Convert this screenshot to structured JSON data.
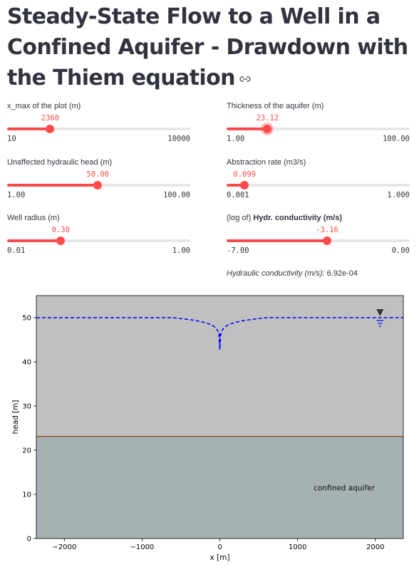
{
  "title": "Steady-State Flow to a Well in a Confined Aquifer - Drawdown with the Thiem equation",
  "sliders": {
    "xmax": {
      "label": "x_max of the plot (m)",
      "value": "2360",
      "min": "10",
      "max": "10000",
      "fraction": 0.235
    },
    "thick": {
      "label": "Thickness of the aquifer (m)",
      "value": "23.12",
      "min": "1.00",
      "max": "100.00",
      "fraction": 0.223
    },
    "head": {
      "label": "Unaffected hydraulic head (m)",
      "value": "50.00",
      "min": "1.00",
      "max": "100.00",
      "fraction": 0.495
    },
    "q": {
      "label": "Abstraction rate (m3/s)",
      "value": "0.099",
      "min": "0.001",
      "max": "1.000",
      "fraction": 0.098
    },
    "rw": {
      "label": "Well radius (m)",
      "value": "0.30",
      "min": "0.01",
      "max": "1.00",
      "fraction": 0.293
    },
    "logk": {
      "label_prefix": "(log of)",
      "label_bold": "Hydr. conductivity (m/s)",
      "value": "-3.16",
      "min": "-7.00",
      "max": "0.00",
      "fraction": 0.549
    }
  },
  "k_info": {
    "label": "Hydraulic conductivity (m/s):",
    "value": "6.92e-04"
  },
  "chart_data": {
    "type": "line",
    "xlabel": "x [m]",
    "ylabel": "head [m]",
    "xlim": [
      -2360,
      2360
    ],
    "ylim": [
      0,
      55
    ],
    "xticks": [
      -2000,
      -1000,
      0,
      1000,
      2000
    ],
    "xtick_labels": [
      "−2000",
      "−1000",
      "0",
      "1000",
      "2000"
    ],
    "yticks": [
      0,
      10,
      20,
      30,
      40,
      50
    ],
    "ytick_labels": [
      "0",
      "10",
      "20",
      "30",
      "40",
      "50"
    ],
    "aquifer_top": 23.12,
    "aquifer_label": "confined aquifer",
    "unaffected_head": 50.0,
    "well_radius": 0.3,
    "radius_of_influence": 620,
    "head_at_well": 42.8,
    "colors": {
      "head_line": "#0000ff",
      "upper_fill": "#c0c0c0",
      "aquifer_fill": "#a5b1b3",
      "aquifer_top_line": "#8b4513",
      "axis": "#000000"
    }
  }
}
